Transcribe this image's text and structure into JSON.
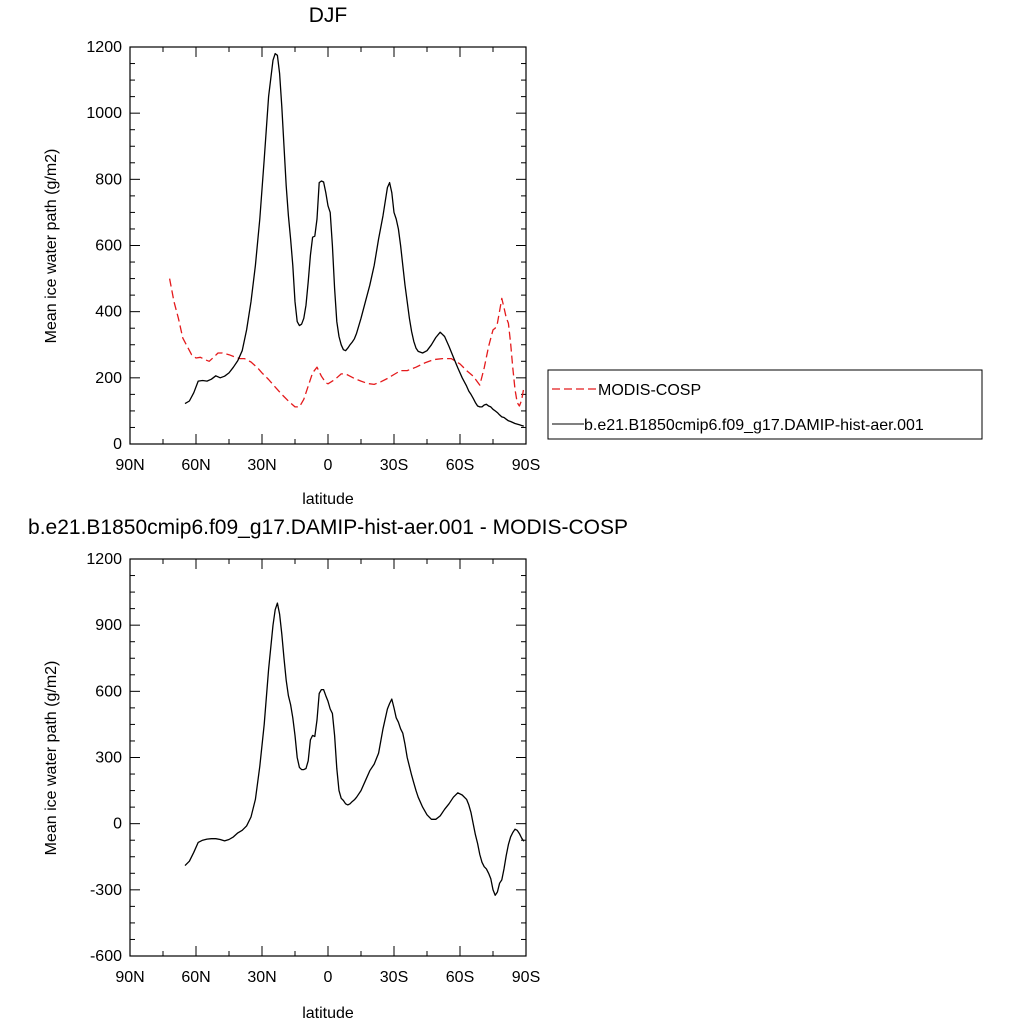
{
  "chart_data": [
    {
      "type": "line",
      "title": "DJF",
      "xlabel": "latitude",
      "ylabel": "Mean ice water path (g/m2)",
      "xlim": [
        -90,
        90
      ],
      "ylim": [
        0,
        1200
      ],
      "x_ticks": [
        -90,
        -60,
        -30,
        0,
        30,
        60,
        90
      ],
      "x_tick_labels": [
        "90N",
        "60N",
        "30N",
        "0",
        "30S",
        "60S",
        "90S"
      ],
      "y_ticks": [
        0,
        200,
        400,
        600,
        800,
        1000,
        1200
      ],
      "y_tick_labels": [
        "0",
        "200",
        "400",
        "600",
        "800",
        "1000",
        "1200"
      ],
      "legend": "outside-right",
      "series": [
        {
          "name": "MODIS-COSP",
          "color": "#e41a1c",
          "dash": "dashed",
          "x": [
            -72,
            -70,
            -68,
            -66,
            -64,
            -62,
            -60,
            -58,
            -56,
            -54,
            -52,
            -50,
            -48,
            -45,
            -42,
            -40,
            -38,
            -35,
            -32,
            -30,
            -27,
            -24,
            -21,
            -18,
            -15,
            -13,
            -11,
            -9,
            -7,
            -5,
            -3,
            -1,
            0,
            2,
            4,
            6,
            8,
            10,
            12,
            15,
            18,
            21,
            24,
            27,
            30,
            33,
            36,
            40,
            44,
            48,
            52,
            56,
            60,
            63,
            66,
            69,
            71,
            73,
            75,
            76,
            77,
            78,
            79,
            80,
            81,
            82,
            83,
            84,
            85,
            86,
            87,
            88,
            89
          ],
          "values": [
            500,
            430,
            380,
            320,
            295,
            270,
            260,
            262,
            255,
            250,
            262,
            275,
            275,
            270,
            262,
            258,
            258,
            248,
            230,
            215,
            195,
            172,
            150,
            130,
            112,
            112,
            135,
            175,
            215,
            232,
            205,
            185,
            182,
            190,
            200,
            212,
            212,
            205,
            198,
            190,
            183,
            180,
            188,
            198,
            210,
            222,
            222,
            232,
            245,
            255,
            258,
            258,
            242,
            222,
            205,
            178,
            230,
            295,
            345,
            350,
            365,
            402,
            440,
            412,
            382,
            365,
            305,
            230,
            165,
            125,
            115,
            132,
            170
          ]
        },
        {
          "name": "b.e21.B1850cmip6.f09_g17.DAMIP-hist-aer.001",
          "color": "#000000",
          "dash": "solid",
          "x": [
            -65,
            -63,
            -61,
            -59,
            -57,
            -55,
            -53,
            -51,
            -49,
            -47,
            -45,
            -43,
            -41,
            -39,
            -37,
            -35,
            -33,
            -31,
            -29,
            -27,
            -25,
            -24,
            -23,
            -22,
            -21,
            -20,
            -19,
            -18,
            -17,
            -16,
            -15,
            -14,
            -13,
            -12,
            -11,
            -10,
            -9,
            -8,
            -7,
            -6,
            -5,
            -4,
            -3,
            -2,
            -1,
            0,
            1,
            2,
            3,
            4,
            5,
            6,
            7,
            8,
            9,
            10,
            11,
            12,
            13,
            15,
            17,
            19,
            21,
            23,
            25,
            27,
            28,
            29,
            30,
            31,
            32,
            33,
            34,
            35,
            36,
            37,
            38,
            39,
            40,
            41,
            43,
            45,
            47,
            49,
            51,
            53,
            55,
            57,
            59,
            61,
            63,
            64,
            65,
            66,
            67,
            68,
            69,
            70,
            71,
            72,
            73,
            74,
            75,
            76,
            77,
            78,
            79,
            80,
            81,
            82,
            83,
            84,
            85,
            86,
            87,
            88,
            89
          ],
          "values": [
            122,
            130,
            155,
            190,
            192,
            190,
            196,
            206,
            200,
            205,
            215,
            232,
            252,
            282,
            345,
            430,
            540,
            680,
            860,
            1050,
            1160,
            1180,
            1175,
            1120,
            1020,
            900,
            780,
            690,
            620,
            540,
            430,
            370,
            358,
            362,
            380,
            420,
            490,
            570,
            625,
            628,
            680,
            790,
            795,
            792,
            760,
            720,
            700,
            600,
            470,
            370,
            325,
            300,
            285,
            282,
            290,
            300,
            308,
            318,
            335,
            380,
            430,
            480,
            540,
            620,
            690,
            775,
            790,
            760,
            700,
            680,
            650,
            600,
            540,
            480,
            430,
            380,
            340,
            310,
            290,
            280,
            275,
            282,
            300,
            322,
            338,
            325,
            295,
            262,
            230,
            200,
            175,
            160,
            150,
            138,
            125,
            115,
            112,
            112,
            118,
            120,
            115,
            112,
            105,
            100,
            95,
            88,
            82,
            80,
            75,
            70,
            68,
            65,
            62,
            60,
            58,
            56,
            54
          ]
        }
      ]
    },
    {
      "type": "line",
      "title": "b.e21.B1850cmip6.f09_g17.DAMIP-hist-aer.001 - MODIS-COSP",
      "xlabel": "latitude",
      "ylabel": "Mean ice water path (g/m2)",
      "xlim": [
        -90,
        90
      ],
      "ylim": [
        -600,
        1200
      ],
      "x_ticks": [
        -90,
        -60,
        -30,
        0,
        30,
        60,
        90
      ],
      "x_tick_labels": [
        "90N",
        "60N",
        "30N",
        "0",
        "30S",
        "60S",
        "90S"
      ],
      "y_ticks": [
        -600,
        -300,
        0,
        300,
        600,
        900,
        1200
      ],
      "y_tick_labels": [
        "-600",
        "-300",
        "0",
        "300",
        "600",
        "900",
        "1200"
      ],
      "series": [
        {
          "color": "#000000",
          "dash": "solid",
          "x": [
            -65,
            -63,
            -61,
            -59,
            -57,
            -55,
            -53,
            -51,
            -49,
            -47,
            -45,
            -43,
            -41,
            -39,
            -37,
            -35,
            -33,
            -31,
            -29,
            -27,
            -25,
            -24,
            -23,
            -22,
            -21,
            -20,
            -19,
            -18,
            -17,
            -16,
            -15,
            -14,
            -13,
            -12,
            -11,
            -10,
            -9,
            -8,
            -7,
            -6,
            -5,
            -4,
            -3,
            -2,
            -1,
            0,
            1,
            2,
            3,
            4,
            5,
            6,
            7,
            8,
            9,
            10,
            11,
            12,
            13,
            15,
            17,
            19,
            21,
            23,
            25,
            27,
            28,
            29,
            30,
            31,
            32,
            33,
            34,
            35,
            36,
            37,
            38,
            39,
            40,
            41,
            43,
            45,
            47,
            49,
            51,
            53,
            55,
            57,
            59,
            61,
            63,
            64,
            65,
            66,
            67,
            68,
            69,
            70,
            71,
            72,
            73,
            74,
            75,
            76,
            77,
            78,
            79,
            80,
            81,
            82,
            83,
            84,
            85,
            86,
            87,
            88,
            89
          ],
          "values": [
            -190,
            -170,
            -130,
            -85,
            -75,
            -70,
            -68,
            -68,
            -72,
            -78,
            -72,
            -60,
            -42,
            -30,
            -10,
            30,
            110,
            260,
            450,
            700,
            900,
            970,
            1000,
            950,
            860,
            750,
            650,
            580,
            540,
            480,
            400,
            300,
            255,
            245,
            245,
            250,
            285,
            380,
            400,
            395,
            470,
            590,
            608,
            608,
            580,
            555,
            520,
            500,
            400,
            250,
            150,
            115,
            105,
            90,
            85,
            90,
            100,
            108,
            120,
            150,
            195,
            240,
            270,
            320,
            430,
            520,
            545,
            565,
            525,
            480,
            460,
            430,
            410,
            360,
            300,
            260,
            220,
            185,
            150,
            120,
            75,
            40,
            20,
            20,
            35,
            65,
            90,
            120,
            140,
            130,
            110,
            85,
            50,
            0,
            -50,
            -90,
            -140,
            -175,
            -195,
            -205,
            -225,
            -250,
            -300,
            -325,
            -310,
            -270,
            -255,
            -205,
            -145,
            -95,
            -60,
            -40,
            -25,
            -30,
            -45,
            -65,
            -80
          ]
        }
      ]
    }
  ]
}
